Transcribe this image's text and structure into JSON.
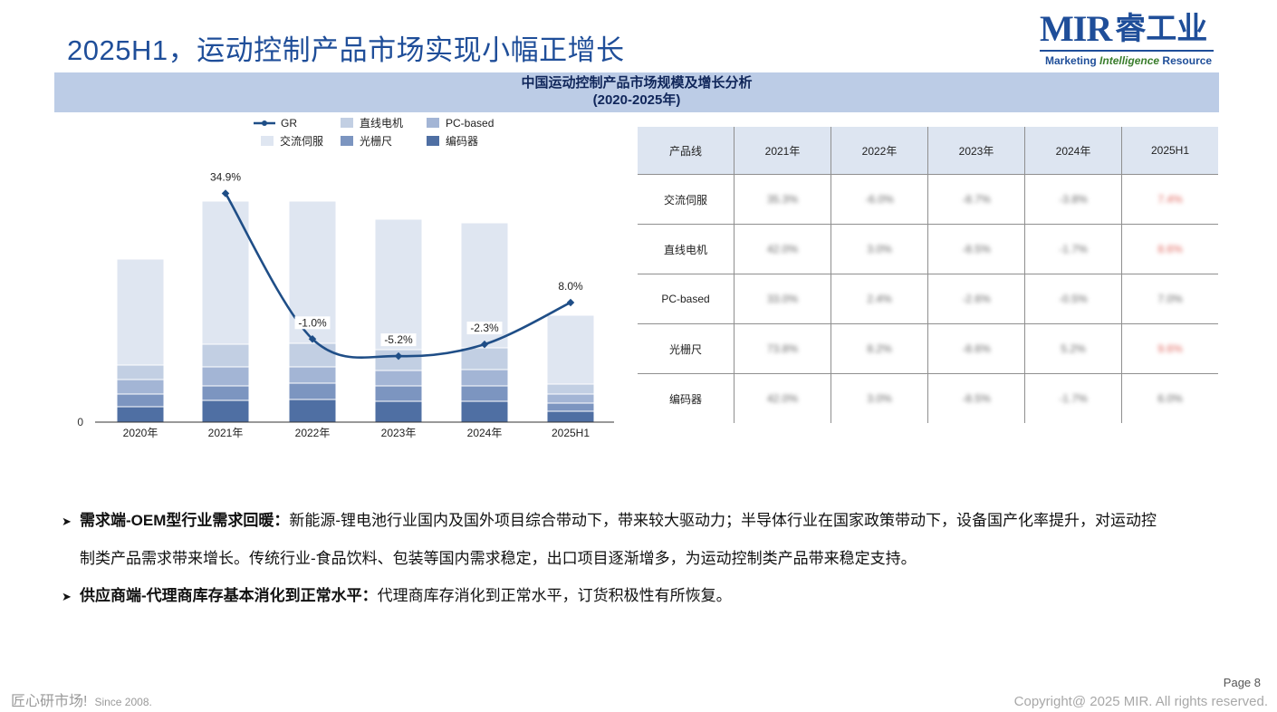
{
  "page_title": "2025H1，运动控制产品市场实现小幅正增长",
  "logo": {
    "mark": "MIR",
    "cn": "睿工业",
    "tagline_a": "Marketing",
    "tagline_b": "Intelligence",
    "tagline_c": "Resource"
  },
  "section_header": {
    "line1": "中国运动控制产品市场规模及增长分析",
    "line2": "(2020-2025年)"
  },
  "chart_data": {
    "type": "bar",
    "stacked": true,
    "categories": [
      "2020年",
      "2021年",
      "2022年",
      "2023年",
      "2024年",
      "2025H1"
    ],
    "y_axis_zero_label": "0",
    "series": [
      {
        "name": "编码器",
        "color": "#4f6fa3",
        "values": [
          17,
          24,
          25,
          23,
          23,
          12
        ]
      },
      {
        "name": "光栅尺",
        "color": "#7c95c0",
        "values": [
          14,
          16,
          18,
          17,
          17,
          9
        ]
      },
      {
        "name": "PC-based",
        "color": "#a3b5d5",
        "values": [
          16,
          21,
          18,
          17,
          18,
          10
        ]
      },
      {
        "name": "直线电机",
        "color": "#c2cfe3",
        "values": [
          16,
          25,
          26,
          23,
          24,
          11
        ]
      },
      {
        "name": "交流伺服",
        "color": "#dfe6f1",
        "values": [
          117,
          158,
          157,
          144,
          138,
          76
        ]
      }
    ],
    "line_series": {
      "name": "GR",
      "color": "#1f4e87",
      "categories": [
        "2021年",
        "2022年",
        "2023年",
        "2024年",
        "2025H1"
      ],
      "values": [
        34.9,
        -1.0,
        -5.2,
        -2.3,
        8.0
      ],
      "labels": [
        "34.9%",
        "-1.0%",
        "-5.2%",
        "-2.3%",
        "8.0%"
      ]
    },
    "legend_position": "top-center",
    "grid": false
  },
  "table": {
    "headers": [
      "产品线",
      "2021年",
      "2022年",
      "2023年",
      "2024年",
      "2025H1"
    ],
    "rows": [
      {
        "name": "交流伺服",
        "values": [
          "35.3%",
          "-6.0%",
          "-8.7%",
          "-3.8%",
          "7.4%"
        ],
        "flag": [
          false,
          false,
          false,
          false,
          true
        ]
      },
      {
        "name": "直线电机",
        "values": [
          "42.0%",
          "3.0%",
          "-8.5%",
          "-1.7%",
          "8.6%"
        ],
        "flag": [
          false,
          false,
          false,
          false,
          true
        ]
      },
      {
        "name": "PC-based",
        "values": [
          "33.0%",
          "2.4%",
          "-2.6%",
          "-0.5%",
          "7.0%"
        ],
        "flag": [
          false,
          false,
          false,
          false,
          false
        ]
      },
      {
        "name": "光栅尺",
        "values": [
          "73.8%",
          "8.2%",
          "-8.6%",
          "5.2%",
          "9.6%"
        ],
        "flag": [
          false,
          false,
          false,
          false,
          true
        ]
      },
      {
        "name": "编码器",
        "values": [
          "42.0%",
          "3.0%",
          "-8.5%",
          "-1.7%",
          "6.0%"
        ],
        "flag": [
          false,
          false,
          false,
          false,
          false
        ]
      }
    ]
  },
  "bullets": [
    {
      "bold": "需求端-OEM型行业需求回暖：",
      "text": "新能源-锂电池行业国内及国外项目综合带动下，带来较大驱动力；半导体行业在国家政策带动下，设备国产化率提升，对运动控",
      "cont": "制类产品需求带来增长。传统行业-食品饮料、包装等国内需求稳定，出口项目逐渐增多，为运动控制类产品带来稳定支持。"
    },
    {
      "bold": "供应商端-代理商库存基本消化到正常水平：",
      "text": "代理商库存消化到正常水平，订货积极性有所恢复。",
      "cont": ""
    }
  ],
  "footer": {
    "slogan": "匠心研市场!",
    "since": "Since 2008.",
    "page": "Page 8",
    "copyright": "Copyright@ 2025 MIR. All rights reserved."
  }
}
